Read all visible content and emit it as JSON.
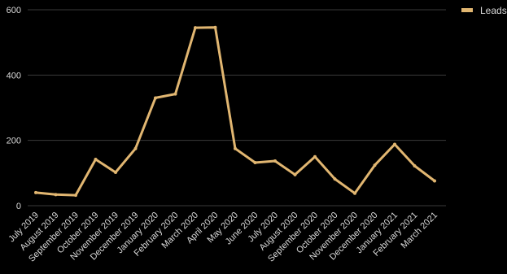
{
  "chart_data": {
    "type": "line",
    "title": "",
    "xlabel": "",
    "ylabel": "",
    "x": [
      "July 2019",
      "August 2019",
      "September 2019",
      "October 2019",
      "November 2019",
      "December 2019",
      "January 2020",
      "February 2020",
      "March 2020",
      "April 2020",
      "May 2020",
      "June 2020",
      "July 2020",
      "August 2020",
      "September 2020",
      "October 2020",
      "November 2020",
      "December 2020",
      "January 2021",
      "February 2021",
      "March 2021"
    ],
    "series": [
      {
        "name": "Leads",
        "color": "#e1b671",
        "values": [
          40,
          34,
          32,
          142,
          102,
          175,
          330,
          342,
          545,
          546,
          175,
          132,
          137,
          95,
          150,
          82,
          38,
          124,
          188,
          122,
          76
        ]
      }
    ],
    "ylim": [
      0,
      600
    ],
    "yticks": [
      0,
      200,
      400,
      600
    ],
    "grid": true,
    "legend_position": "top-right"
  }
}
